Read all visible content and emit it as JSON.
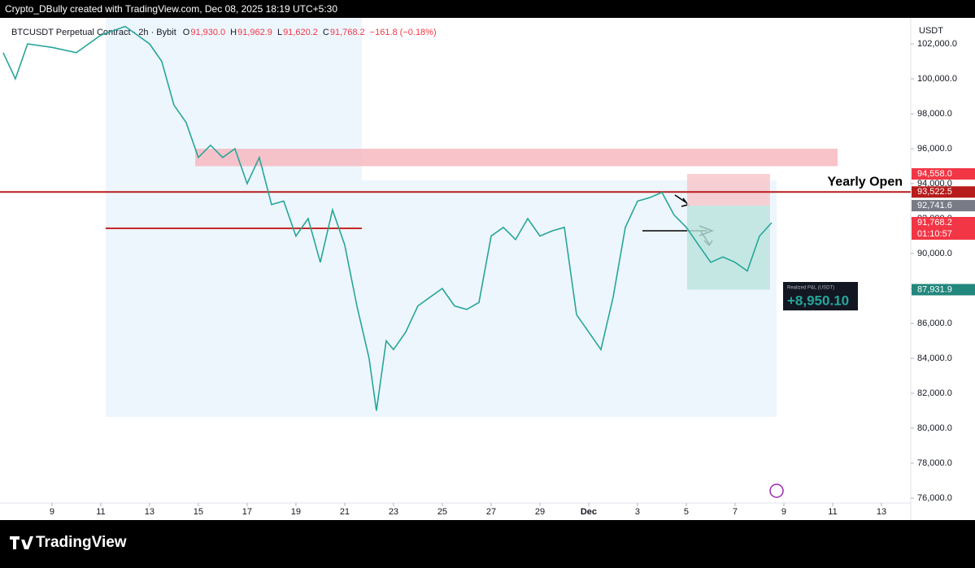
{
  "header": {
    "credit": "Crypto_DBully created with TradingView.com, Dec 08, 2025 18:19 UTC+5:30",
    "symbol": "BTCUSDT Perpetual Contract · 2h · Bybit",
    "ohlc": [
      {
        "key": "O",
        "text": "91,930.0"
      },
      {
        "key": "H",
        "text": "91,962.9"
      },
      {
        "key": "L",
        "text": "91,620.2"
      },
      {
        "key": "C",
        "text": "91,768.2"
      }
    ],
    "change": "−161.8 (−0.18%)",
    "currency": "USDT"
  },
  "footer": {
    "brand": "TradingView"
  },
  "chart_data": {
    "type": "line",
    "color": "#26a69a",
    "x": [
      7,
      7.5,
      8,
      9,
      10,
      11,
      12,
      13,
      13.5,
      14,
      14.5,
      15,
      15.5,
      16,
      16.5,
      17,
      17.5,
      18,
      18.5,
      19,
      19.5,
      20,
      20.5,
      21,
      21.5,
      22,
      22.3,
      22.7,
      23,
      23.5,
      24,
      24.5,
      25,
      25.5,
      26,
      26.5,
      27,
      27.5,
      28,
      28.5,
      29,
      29.5,
      30,
      30.5,
      31,
      31.5,
      32,
      32.5,
      33,
      33.5,
      34,
      34.5,
      35,
      35.5,
      36,
      36.5,
      37,
      37.5,
      38,
      38.5
    ],
    "series": [
      {
        "name": "BTCUSDT",
        "color": "#26a69a",
        "values": [
          101500,
          100000,
          102000,
          101800,
          101500,
          102500,
          103000,
          102000,
          101000,
          98500,
          97500,
          95500,
          96200,
          95500,
          96000,
          94000,
          95500,
          92800,
          93000,
          91000,
          92000,
          89500,
          92500,
          90500,
          87000,
          84000,
          81000,
          85000,
          84500,
          85500,
          87000,
          87500,
          88000,
          87000,
          86800,
          87200,
          91000,
          91500,
          90800,
          92000,
          91000,
          91300,
          91500,
          86500,
          85500,
          84500,
          87500,
          91500,
          93000,
          93200,
          93500,
          92200,
          91500,
          90500,
          89500,
          89800,
          89500,
          89000,
          91000,
          91768.2
        ]
      }
    ],
    "xlim": [
      6.87,
      44.2
    ],
    "xticks": [
      9,
      11,
      13,
      15,
      17,
      19,
      21,
      23,
      25,
      27,
      29,
      {
        "value": 31,
        "label": "Dec"
      },
      {
        "value": 33,
        "label": "3"
      },
      {
        "value": 35,
        "label": "5"
      },
      {
        "value": 37,
        "label": "7"
      },
      {
        "value": 39,
        "label": "9"
      },
      {
        "value": 41,
        "label": "11"
      },
      {
        "value": 43,
        "label": "13"
      }
    ],
    "ylim": [
      75580,
      103490
    ],
    "yticks": [
      {
        "value": 76000,
        "label": "76,000.0"
      },
      {
        "value": 78000,
        "label": "78,000.0"
      },
      {
        "value": 80000,
        "label": "80,000.0"
      },
      {
        "value": 82000,
        "label": "82,000.0"
      },
      {
        "value": 84000,
        "label": "84,000.0"
      },
      {
        "value": 86000,
        "label": "86,000.0"
      },
      {
        "value": 88000,
        "label": "88,000.0"
      },
      {
        "value": 90000,
        "label": "90,000.0"
      },
      {
        "value": 92000,
        "label": "92,000.0"
      },
      {
        "value": 94000,
        "label": "94,000.0"
      },
      {
        "value": 96000,
        "label": "96,000.0"
      },
      {
        "value": 98000,
        "label": "98,000.0"
      },
      {
        "value": 100000,
        "label": "100,000.0"
      },
      {
        "value": 102000,
        "label": "102,000.0"
      }
    ],
    "zones": [
      {
        "low": 95000,
        "high": 96000,
        "x0": 14.87,
        "x1": 41.2,
        "color": "#f7b9c0"
      }
    ],
    "levels": [
      {
        "value": 93522.5,
        "x0": 6.87,
        "x1": 44.2,
        "color": "#b71c1c",
        "label": "Yearly Open"
      },
      {
        "value": 91440,
        "x0": 11.2,
        "x1": 21.7,
        "color": "#c62828"
      }
    ],
    "position": {
      "stop": 94558,
      "entry": 92741.6,
      "target": 87931.9,
      "x0": 35.03,
      "x1": 38.43
    },
    "price_labels": [
      {
        "value": 94558,
        "label": "94,558.0",
        "color": "#f23645"
      },
      {
        "value": 93522.5,
        "label": "93,522.5",
        "color": "#b71c1c"
      },
      {
        "value": 92741.6,
        "label": "92,741.6",
        "color": "#787b86"
      },
      {
        "value": 91768.2,
        "label": "91,768.2",
        "color": "#f23645",
        "sub": "01:10:57"
      },
      {
        "value": 87931.9,
        "label": "87,931.9",
        "color": "#22877d"
      }
    ],
    "pnl": {
      "title": "Realized P&L (USDT)",
      "value": "+8,950.10"
    }
  }
}
